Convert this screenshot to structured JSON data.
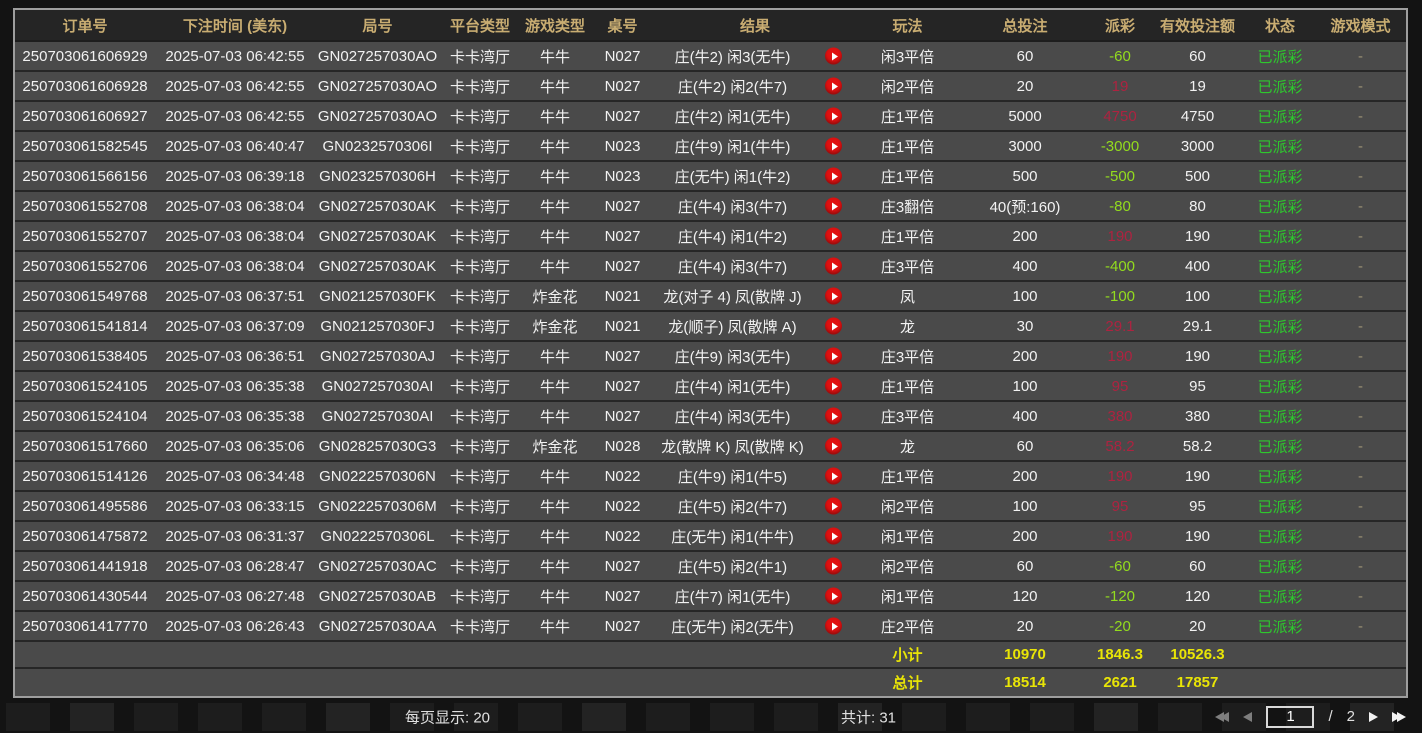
{
  "columns": [
    {
      "key": "order_id",
      "label": "订单号"
    },
    {
      "key": "bet_time",
      "label": "下注时间 (美东)"
    },
    {
      "key": "round_id",
      "label": "局号"
    },
    {
      "key": "platform",
      "label": "平台类型"
    },
    {
      "key": "game_type",
      "label": "游戏类型"
    },
    {
      "key": "table_no",
      "label": "桌号"
    },
    {
      "key": "result",
      "label": "结果"
    },
    {
      "key": "play_type",
      "label": "玩法"
    },
    {
      "key": "total_bet",
      "label": "总投注"
    },
    {
      "key": "payout",
      "label": "派彩"
    },
    {
      "key": "valid_bet",
      "label": "有效投注额"
    },
    {
      "key": "status",
      "label": "状态"
    },
    {
      "key": "game_mode",
      "label": "游戏模式"
    }
  ],
  "rows": [
    {
      "order_id": "250703061606929",
      "bet_time": "2025-07-03 06:42:55",
      "round_id": "GN027257030AO",
      "platform": "卡卡湾厅",
      "game_type": "牛牛",
      "table_no": "N027",
      "result": "庄(牛2) 闲3(无牛)",
      "play_type": "闲3平倍",
      "total_bet": "60",
      "payout": "-60",
      "valid_bet": "60",
      "status": "已派彩",
      "game_mode": "-"
    },
    {
      "order_id": "250703061606928",
      "bet_time": "2025-07-03 06:42:55",
      "round_id": "GN027257030AO",
      "platform": "卡卡湾厅",
      "game_type": "牛牛",
      "table_no": "N027",
      "result": "庄(牛2) 闲2(牛7)",
      "play_type": "闲2平倍",
      "total_bet": "20",
      "payout": "19",
      "valid_bet": "19",
      "status": "已派彩",
      "game_mode": "-"
    },
    {
      "order_id": "250703061606927",
      "bet_time": "2025-07-03 06:42:55",
      "round_id": "GN027257030AO",
      "platform": "卡卡湾厅",
      "game_type": "牛牛",
      "table_no": "N027",
      "result": "庄(牛2) 闲1(无牛)",
      "play_type": "庄1平倍",
      "total_bet": "5000",
      "payout": "4750",
      "valid_bet": "4750",
      "status": "已派彩",
      "game_mode": "-"
    },
    {
      "order_id": "250703061582545",
      "bet_time": "2025-07-03 06:40:47",
      "round_id": "GN0232570306I",
      "platform": "卡卡湾厅",
      "game_type": "牛牛",
      "table_no": "N023",
      "result": "庄(牛9) 闲1(牛牛)",
      "play_type": "庄1平倍",
      "total_bet": "3000",
      "payout": "-3000",
      "valid_bet": "3000",
      "status": "已派彩",
      "game_mode": "-"
    },
    {
      "order_id": "250703061566156",
      "bet_time": "2025-07-03 06:39:18",
      "round_id": "GN0232570306H",
      "platform": "卡卡湾厅",
      "game_type": "牛牛",
      "table_no": "N023",
      "result": "庄(无牛) 闲1(牛2)",
      "play_type": "庄1平倍",
      "total_bet": "500",
      "payout": "-500",
      "valid_bet": "500",
      "status": "已派彩",
      "game_mode": "-"
    },
    {
      "order_id": "250703061552708",
      "bet_time": "2025-07-03 06:38:04",
      "round_id": "GN027257030AK",
      "platform": "卡卡湾厅",
      "game_type": "牛牛",
      "table_no": "N027",
      "result": "庄(牛4) 闲3(牛7)",
      "play_type": "庄3翻倍",
      "total_bet": "40(预:160)",
      "payout": "-80",
      "valid_bet": "80",
      "status": "已派彩",
      "game_mode": "-"
    },
    {
      "order_id": "250703061552707",
      "bet_time": "2025-07-03 06:38:04",
      "round_id": "GN027257030AK",
      "platform": "卡卡湾厅",
      "game_type": "牛牛",
      "table_no": "N027",
      "result": "庄(牛4) 闲1(牛2)",
      "play_type": "庄1平倍",
      "total_bet": "200",
      "payout": "190",
      "valid_bet": "190",
      "status": "已派彩",
      "game_mode": "-"
    },
    {
      "order_id": "250703061552706",
      "bet_time": "2025-07-03 06:38:04",
      "round_id": "GN027257030AK",
      "platform": "卡卡湾厅",
      "game_type": "牛牛",
      "table_no": "N027",
      "result": "庄(牛4) 闲3(牛7)",
      "play_type": "庄3平倍",
      "total_bet": "400",
      "payout": "-400",
      "valid_bet": "400",
      "status": "已派彩",
      "game_mode": "-"
    },
    {
      "order_id": "250703061549768",
      "bet_time": "2025-07-03 06:37:51",
      "round_id": "GN021257030FK",
      "platform": "卡卡湾厅",
      "game_type": "炸金花",
      "table_no": "N021",
      "result": "龙(对子 4) 凤(散牌 J)",
      "play_type": "凤",
      "total_bet": "100",
      "payout": "-100",
      "valid_bet": "100",
      "status": "已派彩",
      "game_mode": "-"
    },
    {
      "order_id": "250703061541814",
      "bet_time": "2025-07-03 06:37:09",
      "round_id": "GN021257030FJ",
      "platform": "卡卡湾厅",
      "game_type": "炸金花",
      "table_no": "N021",
      "result": "龙(顺子) 凤(散牌 A)",
      "play_type": "龙",
      "total_bet": "30",
      "payout": "29.1",
      "valid_bet": "29.1",
      "status": "已派彩",
      "game_mode": "-"
    },
    {
      "order_id": "250703061538405",
      "bet_time": "2025-07-03 06:36:51",
      "round_id": "GN027257030AJ",
      "platform": "卡卡湾厅",
      "game_type": "牛牛",
      "table_no": "N027",
      "result": "庄(牛9) 闲3(无牛)",
      "play_type": "庄3平倍",
      "total_bet": "200",
      "payout": "190",
      "valid_bet": "190",
      "status": "已派彩",
      "game_mode": "-"
    },
    {
      "order_id": "250703061524105",
      "bet_time": "2025-07-03 06:35:38",
      "round_id": "GN027257030AI",
      "platform": "卡卡湾厅",
      "game_type": "牛牛",
      "table_no": "N027",
      "result": "庄(牛4) 闲1(无牛)",
      "play_type": "庄1平倍",
      "total_bet": "100",
      "payout": "95",
      "valid_bet": "95",
      "status": "已派彩",
      "game_mode": "-"
    },
    {
      "order_id": "250703061524104",
      "bet_time": "2025-07-03 06:35:38",
      "round_id": "GN027257030AI",
      "platform": "卡卡湾厅",
      "game_type": "牛牛",
      "table_no": "N027",
      "result": "庄(牛4) 闲3(无牛)",
      "play_type": "庄3平倍",
      "total_bet": "400",
      "payout": "380",
      "valid_bet": "380",
      "status": "已派彩",
      "game_mode": "-"
    },
    {
      "order_id": "250703061517660",
      "bet_time": "2025-07-03 06:35:06",
      "round_id": "GN028257030G3",
      "platform": "卡卡湾厅",
      "game_type": "炸金花",
      "table_no": "N028",
      "result": "龙(散牌 K) 凤(散牌 K)",
      "play_type": "龙",
      "total_bet": "60",
      "payout": "58.2",
      "valid_bet": "58.2",
      "status": "已派彩",
      "game_mode": "-"
    },
    {
      "order_id": "250703061514126",
      "bet_time": "2025-07-03 06:34:48",
      "round_id": "GN0222570306N",
      "platform": "卡卡湾厅",
      "game_type": "牛牛",
      "table_no": "N022",
      "result": "庄(牛9) 闲1(牛5)",
      "play_type": "庄1平倍",
      "total_bet": "200",
      "payout": "190",
      "valid_bet": "190",
      "status": "已派彩",
      "game_mode": "-"
    },
    {
      "order_id": "250703061495586",
      "bet_time": "2025-07-03 06:33:15",
      "round_id": "GN0222570306M",
      "platform": "卡卡湾厅",
      "game_type": "牛牛",
      "table_no": "N022",
      "result": "庄(牛5) 闲2(牛7)",
      "play_type": "闲2平倍",
      "total_bet": "100",
      "payout": "95",
      "valid_bet": "95",
      "status": "已派彩",
      "game_mode": "-"
    },
    {
      "order_id": "250703061475872",
      "bet_time": "2025-07-03 06:31:37",
      "round_id": "GN0222570306L",
      "platform": "卡卡湾厅",
      "game_type": "牛牛",
      "table_no": "N022",
      "result": "庄(无牛) 闲1(牛牛)",
      "play_type": "闲1平倍",
      "total_bet": "200",
      "payout": "190",
      "valid_bet": "190",
      "status": "已派彩",
      "game_mode": "-"
    },
    {
      "order_id": "250703061441918",
      "bet_time": "2025-07-03 06:28:47",
      "round_id": "GN027257030AC",
      "platform": "卡卡湾厅",
      "game_type": "牛牛",
      "table_no": "N027",
      "result": "庄(牛5) 闲2(牛1)",
      "play_type": "闲2平倍",
      "total_bet": "60",
      "payout": "-60",
      "valid_bet": "60",
      "status": "已派彩",
      "game_mode": "-"
    },
    {
      "order_id": "250703061430544",
      "bet_time": "2025-07-03 06:27:48",
      "round_id": "GN027257030AB",
      "platform": "卡卡湾厅",
      "game_type": "牛牛",
      "table_no": "N027",
      "result": "庄(牛7) 闲1(无牛)",
      "play_type": "闲1平倍",
      "total_bet": "120",
      "payout": "-120",
      "valid_bet": "120",
      "status": "已派彩",
      "game_mode": "-"
    },
    {
      "order_id": "250703061417770",
      "bet_time": "2025-07-03 06:26:43",
      "round_id": "GN027257030AA",
      "platform": "卡卡湾厅",
      "game_type": "牛牛",
      "table_no": "N027",
      "result": "庄(无牛) 闲2(无牛)",
      "play_type": "庄2平倍",
      "total_bet": "20",
      "payout": "-20",
      "valid_bet": "20",
      "status": "已派彩",
      "game_mode": "-"
    }
  ],
  "summary": {
    "subtotal": {
      "label": "小计",
      "total_bet": "10970",
      "payout": "1846.3",
      "valid_bet": "10526.3"
    },
    "total": {
      "label": "总计",
      "total_bet": "18514",
      "payout": "2621",
      "valid_bet": "17857"
    }
  },
  "pagination": {
    "page_size_label": "每页显示:",
    "page_size_value": "20",
    "record_total_label": "共计:",
    "record_total_value": "31",
    "current_page": "1",
    "page_separator": "/",
    "total_pages": "2"
  },
  "icons": {
    "result_play": "play-circle",
    "pager": [
      "double-arrow-left",
      "arrow-left",
      "arrow-right",
      "double-arrow-right"
    ]
  },
  "colors": {
    "header_text": "#c9ad72",
    "payout_negative": "#93dc1e",
    "payout_positive": "#ad2340",
    "status_paid": "#2ec82e",
    "summary_text": "#e9e506",
    "play_button": "#df1111",
    "row_background": "#4a4a4a"
  }
}
